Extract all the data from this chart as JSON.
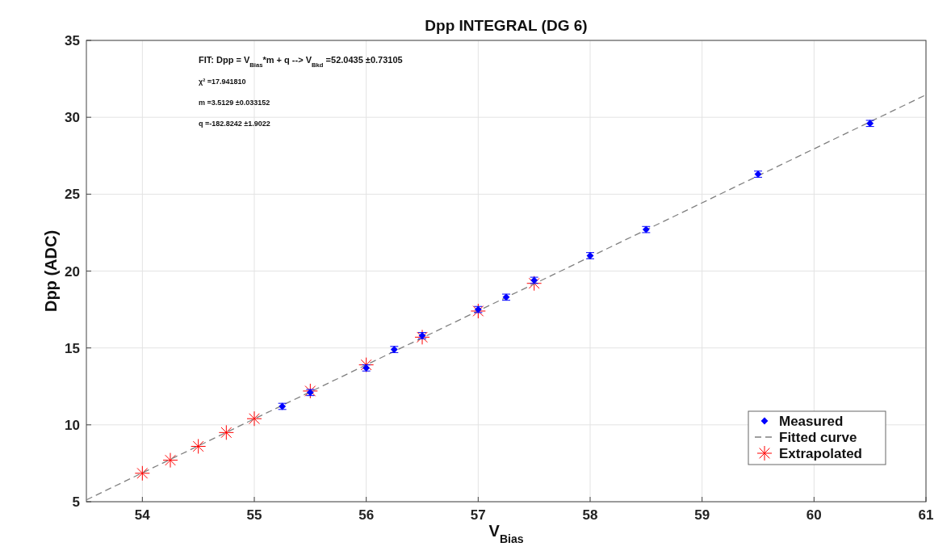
{
  "chart_data": {
    "type": "scatter",
    "title": "Dpp INTEGRAL (DG 6)",
    "xlabel": "V$_{Bias}$",
    "ylabel": "Dpp (ADC)",
    "xlim": [
      53.5,
      61
    ],
    "xticks": [
      54,
      55,
      56,
      57,
      58,
      59,
      60,
      61
    ],
    "ylim": [
      5,
      35
    ],
    "yticks": [
      5,
      10,
      15,
      20,
      25,
      30,
      35
    ],
    "grid": true,
    "legend": "bottom right",
    "annotations": [
      "FIT: Dpp = V$_{Bias}$*m + q --> V$_{Bkd}$ =52.0435 ±0.73105",
      "χ² =17.941810",
      "m =3.5129 ±0.033152",
      "q =-182.8242 ±1.9022"
    ],
    "series": [
      {
        "name": "Measured",
        "color": "#0000ff",
        "marker": "diamond",
        "x": [
          55.25,
          55.5,
          56,
          56.25,
          56.5,
          57,
          57.25,
          57.5,
          58,
          58.5,
          59.5,
          60.5
        ],
        "values": [
          11.2,
          12.1,
          13.7,
          14.9,
          15.8,
          17.5,
          18.3,
          19.4,
          21.0,
          22.7,
          26.3,
          29.6
        ],
        "errors": [
          0.2,
          0.2,
          0.2,
          0.2,
          0.2,
          0.2,
          0.2,
          0.2,
          0.2,
          0.2,
          0.2,
          0.2
        ]
      },
      {
        "name": "Fitted curve",
        "type": "line",
        "color": "#808080",
        "line_style": "dashed",
        "x": [
          53.5,
          61
        ],
        "values": [
          5.12,
          31.46
        ]
      },
      {
        "name": "Extrapolated",
        "color": "#ff0000",
        "marker": "cross",
        "x": [
          54,
          54.25,
          54.5,
          54.75,
          55,
          55.5,
          56,
          56.5,
          57,
          57.5
        ],
        "values": [
          6.85,
          7.7,
          8.6,
          9.5,
          10.4,
          12.2,
          13.9,
          15.7,
          17.4,
          19.2
        ]
      }
    ]
  }
}
